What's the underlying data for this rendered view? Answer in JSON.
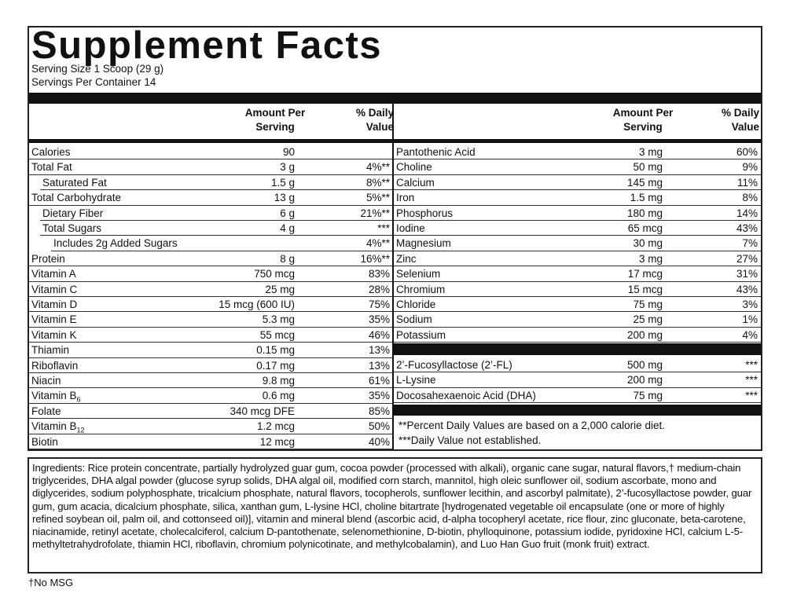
{
  "header": {
    "title": "Supplement Facts",
    "serving_size": "Serving Size 1 Scoop (29 g)",
    "servings_per_container": "Servings Per Container 14"
  },
  "left_table": {
    "columns": [
      "Amount Per Serving",
      "% Daily Value"
    ],
    "rows": [
      {
        "name": "Calories",
        "amount": "90"
      },
      {
        "name": "Total Fat",
        "amount": "3 g",
        "dv": "4%**",
        "subrows": [
          {
            "name": "Saturated Fat",
            "amount": "1.5 g",
            "dv": "8%**"
          }
        ]
      },
      {
        "name": "Total Carbohydrate",
        "amount": "13 g",
        "dv": "5%**",
        "subrows": [
          {
            "name": "Dietary Fiber",
            "amount": "6 g",
            "dv": "21%**"
          },
          {
            "name": "Total Sugars",
            "amount": "4 g",
            "dv": "***",
            "subrows": [
              {
                "name": "Includes 2g Added Sugars",
                "dv": "4%**"
              }
            ]
          }
        ]
      },
      {
        "name": "Protein",
        "amount": "8 g",
        "dv": "16%**"
      },
      {
        "name": "Vitamin A",
        "amount": "750 mcg",
        "dv": "83%"
      },
      {
        "name": "Vitamin C",
        "amount": "25 mg",
        "dv": "28%"
      },
      {
        "name": "Vitamin D",
        "amount": "15 mcg (600 IU)",
        "dv": "75%"
      },
      {
        "name": "Vitamin E",
        "amount": "5.3 mg",
        "dv": "35%"
      },
      {
        "name": "Vitamin K",
        "amount": "55 mcg",
        "dv": "46%"
      },
      {
        "name": "Thiamin",
        "amount": "0.15 mg",
        "dv": "13%"
      },
      {
        "name": "Riboflavin",
        "amount": "0.17 mg",
        "dv": "13%"
      },
      {
        "name": "Niacin",
        "amount": "9.8 mg",
        "dv": "61%"
      },
      {
        "name": "Vitamin B",
        "sub": "6",
        "amount": "0.6 mg",
        "dv": "35%"
      },
      {
        "name": "Folate",
        "amount": "340 mcg DFE",
        "dv": "85%"
      },
      {
        "name": "Vitamin B",
        "sub": "12",
        "amount": "1.2 mcg",
        "dv": "50%"
      },
      {
        "name": "Biotin",
        "amount": "12 mcg",
        "dv": "40%"
      }
    ]
  },
  "right_table": {
    "columns": [
      "Amount Per Serving",
      "% Daily Value"
    ],
    "rows": [
      {
        "name": "Pantothenic Acid",
        "amount": "3 mg",
        "dv": "60%"
      },
      {
        "name": "Choline",
        "amount": "50 mg",
        "dv": "9%"
      },
      {
        "name": "Calcium",
        "amount": "145 mg",
        "dv": "11%"
      },
      {
        "name": "Iron",
        "amount": "1.5 mg",
        "dv": "8%"
      },
      {
        "name": "Phosphorus",
        "amount": "180 mg",
        "dv": "14%"
      },
      {
        "name": "Iodine",
        "amount": "65 mcg",
        "dv": "43%"
      },
      {
        "name": "Magnesium",
        "amount": "30 mg",
        "dv": "7%"
      },
      {
        "name": "Zinc",
        "amount": "3 mg",
        "dv": "27%"
      },
      {
        "name": "Selenium",
        "amount": "17 mcg",
        "dv": "31%"
      },
      {
        "name": "Chromium",
        "amount": "15 mcg",
        "dv": "43%"
      },
      {
        "name": "Chloride",
        "amount": "75 mg",
        "dv": "3%"
      },
      {
        "name": "Sodium",
        "amount": "25 mg",
        "dv": "1%"
      },
      {
        "name": "Potassium",
        "amount": "200 mg",
        "dv": "4%"
      }
    ],
    "other_rows": [
      {
        "name": "2’-Fucosyllactose (2’-FL)",
        "amount": "500 mg",
        "dv": "***"
      },
      {
        "name": "L-Lysine",
        "amount": "200 mg",
        "dv": "***"
      },
      {
        "name": "Docosahexaenoic Acid (DHA)",
        "amount": "75 mg",
        "dv": "***"
      }
    ],
    "footnotes": [
      "**Percent Daily Values are based on a 2,000 calorie diet.",
      "***Daily Value not established."
    ]
  },
  "ingredients": "Ingredients: Rice protein concentrate, partially hydrolyzed guar gum, cocoa powder (processed with alkali), organic cane sugar, natural flavors,† medium-chain triglycerides, DHA algal powder (glucose syrup solids, DHA algal oil, modified corn starch, mannitol, high oleic sunflower oil, sodium ascorbate, mono and diglycerides, sodium polyphosphate, tricalcium phosphate, natural flavors, tocopherols, sunflower lecithin, and ascorbyl palmitate), 2’-fucosyllactose powder, guar gum, gum acacia, dicalcium phosphate, silica, xanthan gum, L-lysine HCl, choline bitartrate [hydrogenated vegetable oil encapsulate (one or more of highly refined soybean oil, palm oil, and cottonseed oil)], vitamin and mineral blend (ascorbic acid, d-alpha tocopheryl acetate, rice flour, zinc gluconate, beta-carotene, niacinamide, retinyl acetate, cholecalciferol, calcium D-pantothenate, selenomethionine, D-biotin, phylloquinone, potassium iodide, pyridoxine HCl, calcium L-5-methyltetrahydrofolate, thiamin HCl, riboflavin, chromium polynicotinate, and methylcobalamin), and Luo Han Guo fruit (monk fruit) extract.",
  "footnote": "†No MSG"
}
